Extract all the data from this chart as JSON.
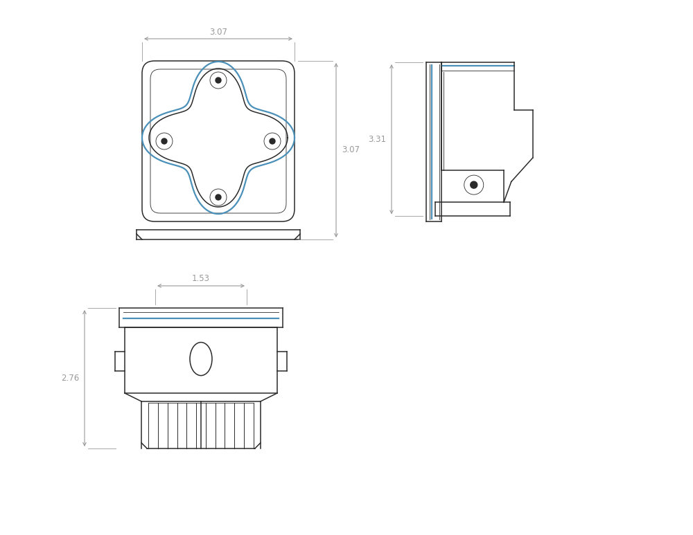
{
  "bg_color": "#ffffff",
  "line_color": "#2a2a2a",
  "blue_color": "#4a90b8",
  "dim_color": "#999999",
  "dim_font_size": 8.5,
  "lw_main": 1.1,
  "lw_thin": 0.6,
  "lw_blue": 1.6,
  "dims": {
    "front_width": "3.07",
    "front_height": "3.07",
    "side_height": "3.31",
    "bottom_width": "1.53",
    "bottom_height": "2.76"
  }
}
